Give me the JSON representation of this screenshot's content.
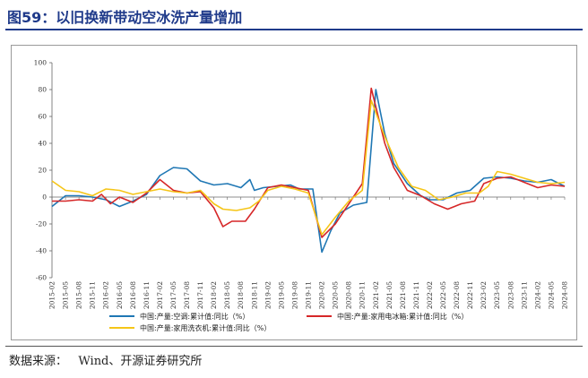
{
  "header": {
    "title": "图59：以旧换新带动空冰洗产量增加"
  },
  "source": {
    "text": "数据来源：   Wind、开源证券研究所"
  },
  "chart_data": {
    "type": "line",
    "title": "",
    "xlabel": "",
    "ylabel": "",
    "ylim": [
      -60,
      100
    ],
    "yticks": [
      -60,
      -40,
      -20,
      0,
      20,
      40,
      60,
      80,
      100
    ],
    "grid": false,
    "legend_position": "bottom",
    "x_tick_labels": [
      "2015-02",
      "2015-05",
      "2015-08",
      "2015-11",
      "2016-02",
      "2016-05",
      "2016-08",
      "2016-11",
      "2017-02",
      "2017-05",
      "2017-08",
      "2017-11",
      "2018-02",
      "2018-05",
      "2018-08",
      "2018-11",
      "2019-02",
      "2019-05",
      "2019-08",
      "2019-11",
      "2020-02",
      "2020-05",
      "2020-08",
      "2020-11",
      "2021-02",
      "2021-05",
      "2021-08",
      "2021-11",
      "2022-02",
      "2022-05",
      "2022-08",
      "2022-11",
      "2023-02",
      "2023-05",
      "2023-08",
      "2023-11",
      "2024-02",
      "2024-05",
      "2024-08"
    ],
    "x_start": "2015-02",
    "x_end": "2024-08",
    "series": [
      {
        "name": "中国:产量:空调:累计值:同比（%）",
        "color": "#1f77b4",
        "points": [
          [
            "2015-02",
            -7
          ],
          [
            "2015-05",
            1
          ],
          [
            "2015-08",
            1
          ],
          [
            "2015-11",
            0
          ],
          [
            "2016-02",
            -2
          ],
          [
            "2016-05",
            -7
          ],
          [
            "2016-08",
            -3
          ],
          [
            "2016-11",
            2
          ],
          [
            "2017-02",
            16
          ],
          [
            "2017-05",
            22
          ],
          [
            "2017-08",
            21
          ],
          [
            "2017-11",
            12
          ],
          [
            "2018-02",
            9
          ],
          [
            "2018-05",
            10
          ],
          [
            "2018-08",
            7
          ],
          [
            "2018-10",
            13
          ],
          [
            "2018-11",
            5
          ],
          [
            "2019-01",
            7
          ],
          [
            "2019-04",
            8
          ],
          [
            "2019-07",
            9
          ],
          [
            "2019-09",
            6
          ],
          [
            "2019-12",
            6
          ],
          [
            "2020-02",
            -41
          ],
          [
            "2020-04",
            -25
          ],
          [
            "2020-06",
            -12
          ],
          [
            "2020-09",
            -6
          ],
          [
            "2020-12",
            -4
          ],
          [
            "2021-02",
            80
          ],
          [
            "2021-04",
            47
          ],
          [
            "2021-06",
            25
          ],
          [
            "2021-09",
            10
          ],
          [
            "2021-12",
            1
          ],
          [
            "2022-02",
            -2
          ],
          [
            "2022-05",
            -2
          ],
          [
            "2022-08",
            3
          ],
          [
            "2022-11",
            5
          ],
          [
            "2023-02",
            14
          ],
          [
            "2023-05",
            15
          ],
          [
            "2023-08",
            14
          ],
          [
            "2023-11",
            12
          ],
          [
            "2024-02",
            11
          ],
          [
            "2024-05",
            13
          ],
          [
            "2024-08",
            8
          ]
        ]
      },
      {
        "name": "中国:产量:家用电冰箱:累计值:同比（%）",
        "color": "#d62728",
        "points": [
          [
            "2015-02",
            -3
          ],
          [
            "2015-05",
            -3
          ],
          [
            "2015-08",
            -2
          ],
          [
            "2015-11",
            -3
          ],
          [
            "2016-01",
            2
          ],
          [
            "2016-03",
            -5
          ],
          [
            "2016-05",
            0
          ],
          [
            "2016-08",
            -4
          ],
          [
            "2016-11",
            3
          ],
          [
            "2017-02",
            13
          ],
          [
            "2017-05",
            5
          ],
          [
            "2017-08",
            3
          ],
          [
            "2017-11",
            4
          ],
          [
            "2018-02",
            -8
          ],
          [
            "2018-04",
            -22
          ],
          [
            "2018-06",
            -18
          ],
          [
            "2018-09",
            -18
          ],
          [
            "2018-11",
            -9
          ],
          [
            "2019-02",
            7
          ],
          [
            "2019-05",
            9
          ],
          [
            "2019-08",
            7
          ],
          [
            "2019-11",
            5
          ],
          [
            "2020-02",
            -30
          ],
          [
            "2020-05",
            -20
          ],
          [
            "2020-08",
            -5
          ],
          [
            "2020-11",
            10
          ],
          [
            "2021-01",
            81
          ],
          [
            "2021-04",
            40
          ],
          [
            "2021-06",
            22
          ],
          [
            "2021-09",
            5
          ],
          [
            "2021-12",
            1
          ],
          [
            "2022-03",
            -5
          ],
          [
            "2022-06",
            -9
          ],
          [
            "2022-09",
            -5
          ],
          [
            "2022-12",
            -3
          ],
          [
            "2023-02",
            10
          ],
          [
            "2023-05",
            14
          ],
          [
            "2023-08",
            15
          ],
          [
            "2023-11",
            11
          ],
          [
            "2024-02",
            7
          ],
          [
            "2024-05",
            9
          ],
          [
            "2024-08",
            8
          ]
        ]
      },
      {
        "name": "中国:产量:家用洗衣机:累计值:同比（%）",
        "color": "#f5c518",
        "points": [
          [
            "2015-02",
            12
          ],
          [
            "2015-05",
            5
          ],
          [
            "2015-08",
            4
          ],
          [
            "2015-11",
            1
          ],
          [
            "2016-02",
            6
          ],
          [
            "2016-05",
            5
          ],
          [
            "2016-08",
            2
          ],
          [
            "2016-11",
            4
          ],
          [
            "2017-02",
            6
          ],
          [
            "2017-05",
            4
          ],
          [
            "2017-08",
            3
          ],
          [
            "2017-11",
            5
          ],
          [
            "2018-02",
            -5
          ],
          [
            "2018-04",
            -9
          ],
          [
            "2018-07",
            -10
          ],
          [
            "2018-10",
            -8
          ],
          [
            "2018-12",
            -3
          ],
          [
            "2019-02",
            5
          ],
          [
            "2019-05",
            8
          ],
          [
            "2019-08",
            6
          ],
          [
            "2019-11",
            3
          ],
          [
            "2020-02",
            -28
          ],
          [
            "2020-05",
            -15
          ],
          [
            "2020-08",
            -3
          ],
          [
            "2020-11",
            5
          ],
          [
            "2021-01",
            72
          ],
          [
            "2021-04",
            45
          ],
          [
            "2021-07",
            22
          ],
          [
            "2021-10",
            8
          ],
          [
            "2022-01",
            5
          ],
          [
            "2022-04",
            -2
          ],
          [
            "2022-07",
            0
          ],
          [
            "2022-10",
            3
          ],
          [
            "2023-01",
            3
          ],
          [
            "2023-03",
            8
          ],
          [
            "2023-05",
            19
          ],
          [
            "2023-08",
            17
          ],
          [
            "2023-11",
            14
          ],
          [
            "2024-02",
            11
          ],
          [
            "2024-05",
            10
          ],
          [
            "2024-08",
            11
          ]
        ]
      }
    ]
  }
}
